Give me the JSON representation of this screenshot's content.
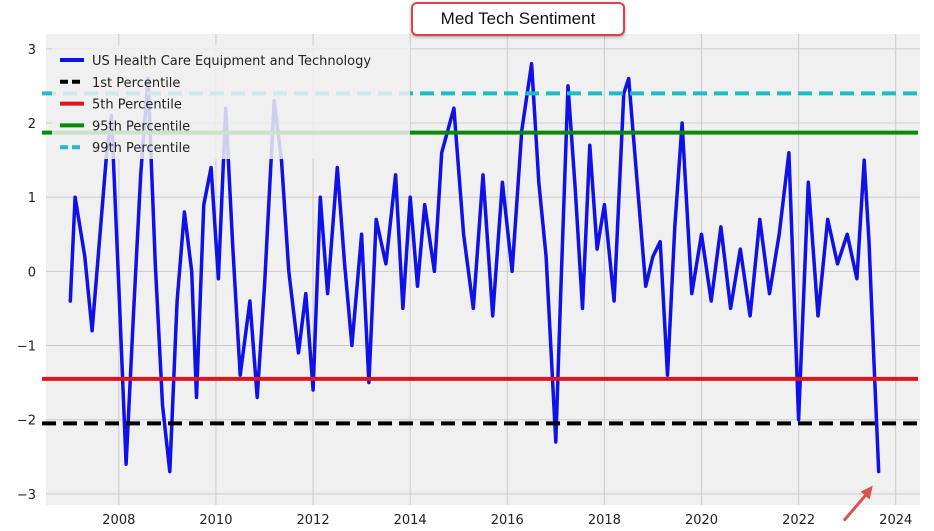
{
  "chart_data": {
    "type": "line",
    "title": "Med Tech Sentiment",
    "xlabel": "",
    "ylabel": "",
    "xlim": [
      2006.5,
      2024.5
    ],
    "ylim": [
      -3.15,
      3.2
    ],
    "x_ticks": [
      2008,
      2010,
      2012,
      2014,
      2016,
      2018,
      2020,
      2022,
      2024
    ],
    "y_ticks": [
      -3,
      -2,
      -1,
      0,
      1,
      2,
      3
    ],
    "grid": true,
    "legend_position": "top-left",
    "series": [
      {
        "name": "US Health Care Equipment and Technology",
        "color": "#1010e8",
        "style": "solid",
        "x": [
          2007.0,
          2007.1,
          2007.3,
          2007.45,
          2007.6,
          2007.75,
          2007.85,
          2008.0,
          2008.15,
          2008.3,
          2008.45,
          2008.6,
          2008.75,
          2008.9,
          2009.05,
          2009.2,
          2009.35,
          2009.5,
          2009.6,
          2009.75,
          2009.9,
          2010.05,
          2010.2,
          2010.35,
          2010.5,
          2010.7,
          2010.85,
          2011.0,
          2011.2,
          2011.35,
          2011.5,
          2011.7,
          2011.85,
          2012.0,
          2012.15,
          2012.3,
          2012.5,
          2012.65,
          2012.8,
          2013.0,
          2013.15,
          2013.3,
          2013.5,
          2013.7,
          2013.85,
          2014.0,
          2014.15,
          2014.3,
          2014.5,
          2014.65,
          2014.9,
          2015.1,
          2015.3,
          2015.5,
          2015.7,
          2015.9,
          2016.1,
          2016.3,
          2016.5,
          2016.65,
          2016.8,
          2017.0,
          2017.1,
          2017.25,
          2017.4,
          2017.55,
          2017.7,
          2017.85,
          2018.0,
          2018.2,
          2018.4,
          2018.5,
          2018.7,
          2018.85,
          2019.0,
          2019.15,
          2019.3,
          2019.45,
          2019.6,
          2019.8,
          2020.0,
          2020.2,
          2020.4,
          2020.6,
          2020.8,
          2021.0,
          2021.2,
          2021.4,
          2021.6,
          2021.8,
          2022.0,
          2022.2,
          2022.4,
          2022.6,
          2022.8,
          2023.0,
          2023.2,
          2023.35,
          2023.45,
          2023.55,
          2023.65
        ],
        "values": [
          -0.4,
          1.0,
          0.2,
          -0.8,
          0.4,
          1.6,
          2.1,
          -0.2,
          -2.6,
          -0.6,
          1.3,
          2.6,
          0.1,
          -1.8,
          -2.7,
          -0.4,
          0.8,
          0.0,
          -1.7,
          0.9,
          1.4,
          -0.1,
          2.2,
          0.3,
          -1.4,
          -0.4,
          -1.7,
          -0.2,
          2.3,
          1.5,
          0.0,
          -1.1,
          -0.3,
          -1.6,
          1.0,
          -0.3,
          1.4,
          0.1,
          -1.0,
          0.5,
          -1.5,
          0.7,
          0.1,
          1.3,
          -0.5,
          1.0,
          -0.2,
          0.9,
          0.0,
          1.6,
          2.2,
          0.5,
          -0.5,
          1.3,
          -0.6,
          1.2,
          0.0,
          1.9,
          2.8,
          1.2,
          0.2,
          -2.3,
          -0.3,
          2.5,
          1.1,
          -0.5,
          1.7,
          0.3,
          0.9,
          -0.4,
          2.4,
          2.6,
          1.0,
          -0.2,
          0.2,
          0.4,
          -1.4,
          0.6,
          2.0,
          -0.3,
          0.5,
          -0.4,
          0.6,
          -0.5,
          0.3,
          -0.6,
          0.7,
          -0.3,
          0.5,
          1.6,
          -2.0,
          1.2,
          -0.6,
          0.7,
          0.1,
          0.5,
          -0.1,
          1.5,
          0.4,
          -1.2,
          -2.7
        ]
      },
      {
        "name": "1st Percentile",
        "color": "#000000",
        "style": "dashed",
        "value": -2.05
      },
      {
        "name": "5th Percentile",
        "color": "#e0141c",
        "style": "solid",
        "value": -1.45
      },
      {
        "name": "95th Percentile",
        "color": "#0a8a0a",
        "style": "solid",
        "value": 1.87
      },
      {
        "name": "99th Percentile",
        "color": "#1fbcc8",
        "style": "dashed",
        "value": 2.4
      }
    ],
    "annotation_arrow_color": "#d9534f"
  }
}
